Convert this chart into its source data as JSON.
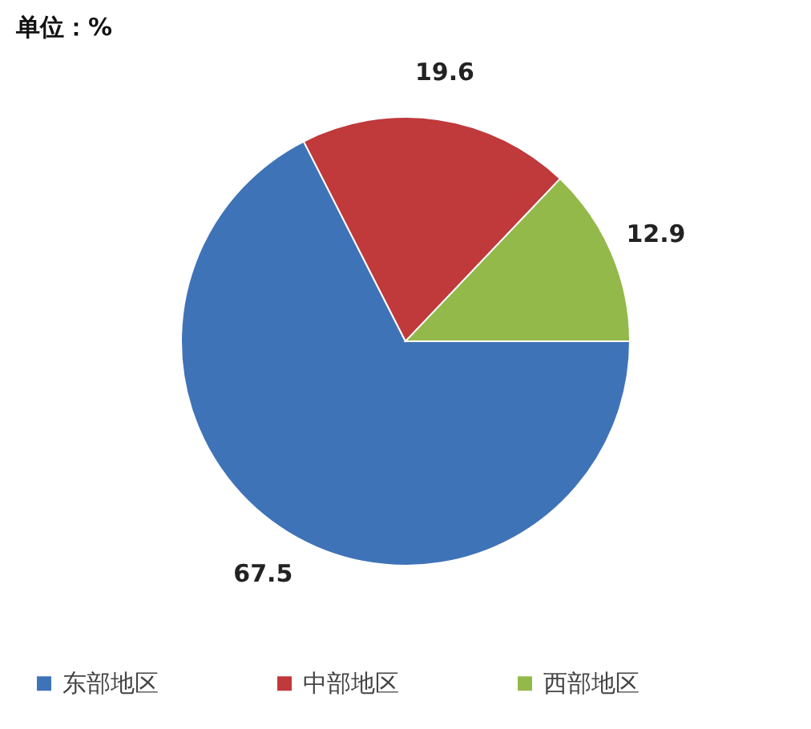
{
  "chart_data": {
    "type": "pie",
    "title": "单位：%",
    "categories": [
      "东部地区",
      "中部地区",
      "西部地区"
    ],
    "values": [
      67.5,
      19.6,
      12.9
    ],
    "colors": [
      "#3f73b8",
      "#c0393b",
      "#93b94a"
    ],
    "data_labels": true,
    "legend": "bottom"
  }
}
